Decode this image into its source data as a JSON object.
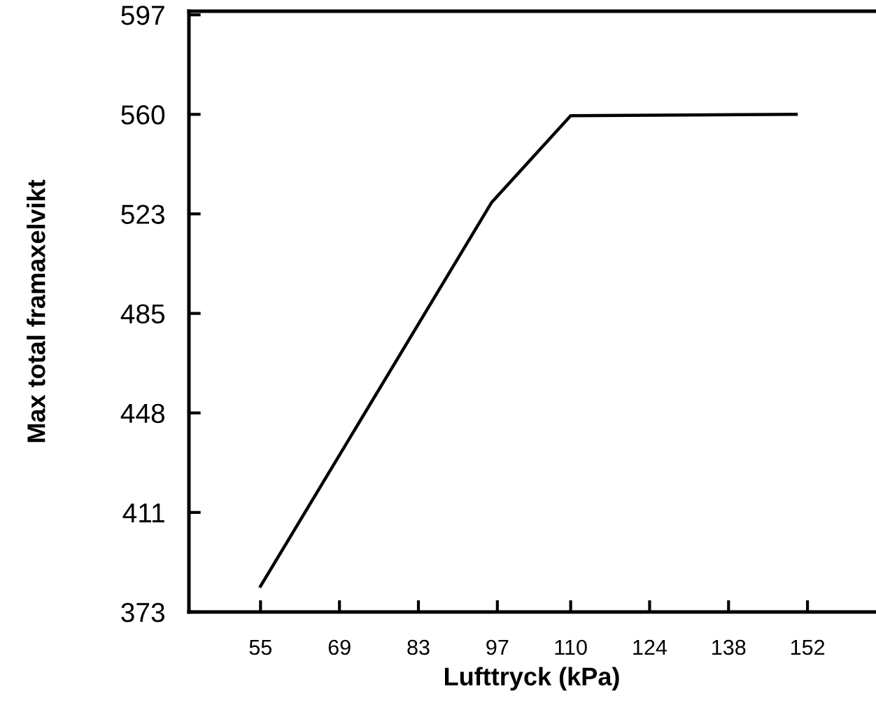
{
  "chart_data": {
    "type": "line",
    "xlabel": "Lufttryck (kPa)",
    "ylabel": "Max total framaxelvikt",
    "x": [
      55,
      96,
      110,
      150
    ],
    "series": [
      {
        "color": "#000000",
        "values": [
          383,
          527,
          559.5,
          560
        ]
      }
    ],
    "xlim": [
      42.3,
      163.9
    ],
    "xticks": [
      55,
      69,
      83,
      97,
      110,
      124,
      138,
      152
    ],
    "ylim": [
      373.33,
      598.7
    ],
    "yticks": [
      {
        "value": 373.33,
        "label": "373"
      },
      {
        "value": 410.67,
        "label": "411"
      },
      {
        "value": 448,
        "label": "448"
      },
      {
        "value": 485.33,
        "label": "485"
      },
      {
        "value": 522.67,
        "label": "523"
      },
      {
        "value": 560,
        "label": "560"
      },
      {
        "value": 597.33,
        "label": "597"
      }
    ],
    "grid": false,
    "marker": "none",
    "line_style": "solid"
  }
}
